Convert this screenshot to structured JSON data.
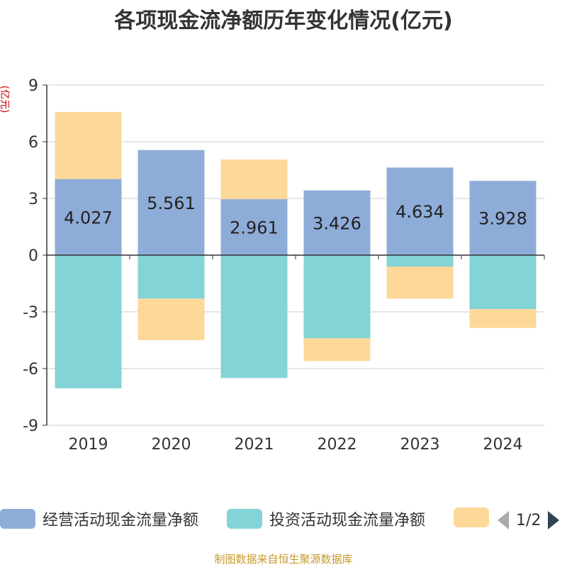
{
  "title": "各项现金流净额历年变化情况(亿元)",
  "unit_label": "(亿元)",
  "footer": "制图数据来自恒生聚源数据库",
  "legend_pager": "1/2",
  "colors": {
    "operating": "#8eacd8",
    "investing": "#84d3d6",
    "financing": "#fed899",
    "axis": "#333333",
    "grid": "#cccccc"
  },
  "chart_data": {
    "type": "bar",
    "stacked": true,
    "categories": [
      "2019",
      "2020",
      "2021",
      "2022",
      "2023",
      "2024"
    ],
    "ylim": [
      -9,
      9
    ],
    "yticks": [
      9,
      6,
      3,
      0,
      -3,
      -6,
      -9
    ],
    "grid": true,
    "legend_position": "bottom",
    "series": [
      {
        "name": "经营活动现金流量净额",
        "values": [
          4.027,
          5.561,
          2.961,
          3.426,
          4.634,
          3.928
        ],
        "labels": [
          "4.027",
          "5.561",
          "2.961",
          "3.426",
          "4.634",
          "3.928"
        ]
      },
      {
        "name": "投资活动现金流量净额",
        "values": [
          -7.05,
          -2.3,
          -6.5,
          -4.4,
          -0.6,
          -2.85
        ]
      },
      {
        "name": "",
        "values": [
          3.55,
          -2.2,
          2.1,
          -1.2,
          -1.7,
          -1.0
        ]
      }
    ]
  }
}
